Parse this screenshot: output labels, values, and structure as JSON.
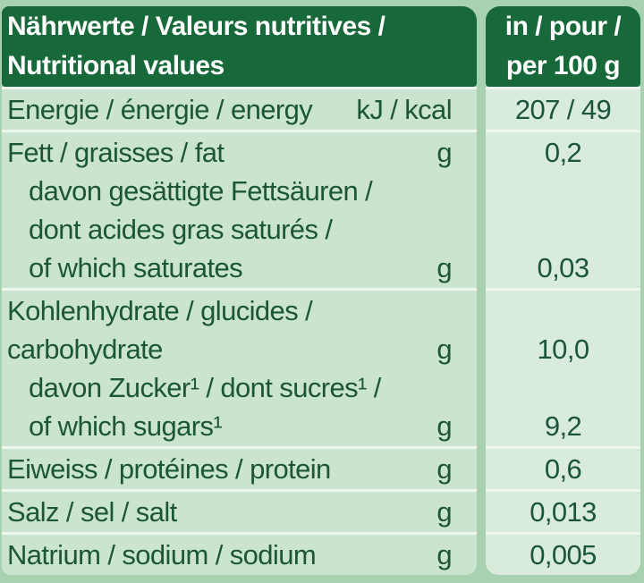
{
  "table": {
    "header": {
      "left_lines": [
        "Nährwerte / Valeurs nutritives /",
        "Nutritional values"
      ],
      "right_lines": [
        "in / pour /",
        "per 100 g"
      ]
    },
    "rows": [
      {
        "name": "energy",
        "lines": [
          {
            "text": "Energie / énergie / energy",
            "indent": false,
            "unit": "kJ / kcal",
            "value": "207 / 49"
          }
        ]
      },
      {
        "name": "fat",
        "lines": [
          {
            "text": "Fett / graisses / fat",
            "indent": false,
            "unit": "g",
            "value": "0,2"
          },
          {
            "text": "davon gesättigte Fettsäuren /",
            "indent": true,
            "unit": "",
            "value": ""
          },
          {
            "text": "dont acides gras saturés /",
            "indent": true,
            "unit": "",
            "value": ""
          },
          {
            "text": "of which saturates",
            "indent": true,
            "unit": "g",
            "value": "0,03"
          }
        ]
      },
      {
        "name": "carbohydrate",
        "lines": [
          {
            "text": "Kohlenhydrate / glucides /",
            "indent": false,
            "unit": "",
            "value": ""
          },
          {
            "text": "carbohydrate",
            "indent": false,
            "unit": "g",
            "value": "10,0"
          },
          {
            "text": "davon Zucker¹ / dont sucres¹ /",
            "indent": true,
            "unit": "",
            "value": ""
          },
          {
            "text": "of which sugars¹",
            "indent": true,
            "unit": "g",
            "value": "9,2"
          }
        ]
      },
      {
        "name": "protein",
        "lines": [
          {
            "text": "Eiweiss / protéines / protein",
            "indent": false,
            "unit": "g",
            "value": "0,6"
          }
        ]
      },
      {
        "name": "salt",
        "lines": [
          {
            "text": "Salz / sel / salt",
            "indent": false,
            "unit": "g",
            "value": "0,013"
          }
        ]
      },
      {
        "name": "sodium",
        "lines": [
          {
            "text": "Natrium / sodium / sodium",
            "indent": false,
            "unit": "g",
            "value": "0,005"
          }
        ]
      }
    ],
    "colors": {
      "header_bg": "#17693a",
      "header_text": "#ffffff",
      "body_text": "#1b5737",
      "left_bg": "#cbe4cf",
      "right_bg": "#d9ecdb",
      "outer_bg": "#a7d1b0",
      "separator": "#eef6ee"
    }
  }
}
